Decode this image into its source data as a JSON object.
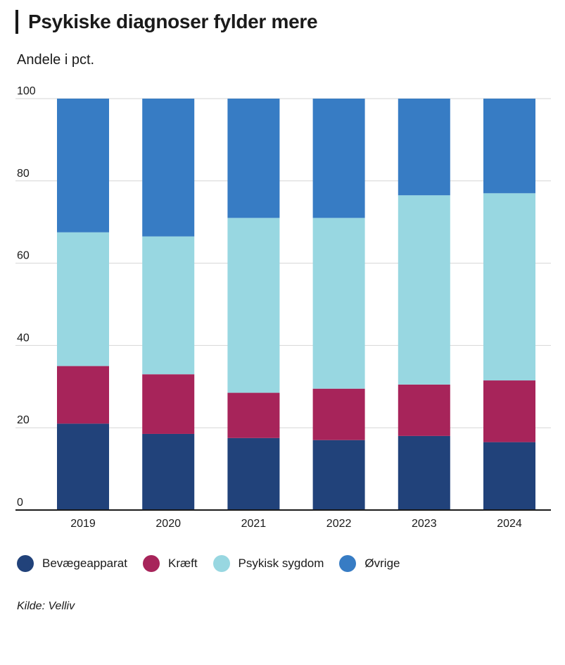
{
  "title": "Psykiske diagnoser fylder mere",
  "subtitle": "Andele i pct.",
  "source": "Kilde: Velliv",
  "chart_data": {
    "type": "bar",
    "stacked": true,
    "categories": [
      "2019",
      "2020",
      "2021",
      "2022",
      "2023",
      "2024"
    ],
    "series": [
      {
        "name": "Bevægeapparat",
        "color": "#21427a",
        "values": [
          21,
          18.5,
          17.5,
          17,
          18,
          16.5
        ]
      },
      {
        "name": "Kræft",
        "color": "#a7245a",
        "values": [
          14,
          14.5,
          11,
          12.5,
          12.5,
          15
        ]
      },
      {
        "name": "Psykisk sygdom",
        "color": "#98d7e1",
        "values": [
          32.5,
          33.5,
          42.5,
          41.5,
          46,
          45.5
        ]
      },
      {
        "name": "Øvrige",
        "color": "#377cc4",
        "values": [
          32.5,
          33.5,
          29,
          29,
          23.5,
          23
        ]
      }
    ],
    "yticks": [
      0,
      20,
      40,
      60,
      80,
      100
    ],
    "ylim": [
      0,
      100
    ],
    "xlabel": "",
    "ylabel": "",
    "legend_position": "bottom"
  }
}
